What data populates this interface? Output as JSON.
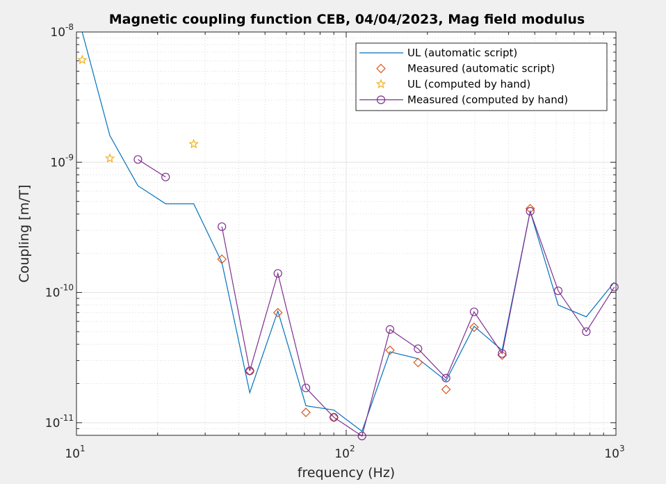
{
  "chart_data": {
    "type": "scatter",
    "title": "Magnetic coupling function CEB, 04/04/2023, Mag field modulus",
    "xlabel": "frequency (Hz)",
    "ylabel": "Coupling [m/T]",
    "xscale": "log",
    "yscale": "log",
    "xlim": [
      10,
      1000
    ],
    "ylim": [
      8e-12,
      1e-08
    ],
    "grid": true,
    "minor_grid": true,
    "legend_position": "top-right",
    "x_ticks": [
      {
        "value": 10,
        "base": "10",
        "exp": "1"
      },
      {
        "value": 100,
        "base": "10",
        "exp": "2"
      },
      {
        "value": 1000,
        "base": "10",
        "exp": "3"
      }
    ],
    "y_ticks": [
      {
        "value": 1e-08,
        "base": "10",
        "exp": "-8"
      },
      {
        "value": 1e-09,
        "base": "10",
        "exp": "-9"
      },
      {
        "value": 1e-10,
        "base": "10",
        "exp": "-10"
      },
      {
        "value": 1e-11,
        "base": "10",
        "exp": "-11"
      }
    ],
    "series": [
      {
        "name": "UL (automatic script)",
        "style": "line",
        "color": "#0072BD",
        "x": [
          10.5,
          13.3,
          16.9,
          21.4,
          27.2,
          34.6,
          43.9,
          55.8,
          70.9,
          90.0,
          114.4,
          145.3,
          184.6,
          234.5,
          297.9,
          378.5,
          480.9,
          610.9,
          776.2,
          986.3
        ],
        "y": [
          1e-08,
          1.6e-09,
          6.6e-10,
          4.8e-10,
          4.8e-10,
          1.7e-10,
          1.7e-11,
          7.2e-11,
          1.35e-11,
          1.25e-11,
          8.6e-12,
          3.5e-11,
          3.1e-11,
          2.1e-11,
          5.5e-11,
          3.6e-11,
          4.2e-10,
          8e-11,
          6.5e-11,
          1.2e-10
        ]
      },
      {
        "name": "Measured (automatic script)",
        "style": "diamond",
        "color": "#D95319",
        "x": [
          34.6,
          43.9,
          55.8,
          70.9,
          90.0,
          145.3,
          184.6,
          234.5,
          297.9,
          378.5,
          480.9
        ],
        "y": [
          1.8e-10,
          2.5e-11,
          7e-11,
          1.2e-11,
          1.1e-11,
          3.6e-11,
          2.9e-11,
          1.8e-11,
          5.4e-11,
          3.3e-11,
          4.4e-10
        ]
      },
      {
        "name": "UL (computed by hand)",
        "style": "star",
        "color": "#EDB120",
        "x": [
          10.5,
          13.3,
          27.2
        ],
        "y": [
          6.1e-09,
          1.07e-09,
          1.38e-09
        ]
      },
      {
        "name": "Measured (computed by hand)",
        "style": "line-circle",
        "color": "#7E2F8E",
        "x": [
          16.9,
          21.4,
          null,
          34.6,
          43.9,
          55.8,
          70.9,
          90.0,
          114.4,
          145.3,
          184.6,
          234.5,
          297.9,
          378.5,
          480.9,
          610.9,
          776.2,
          986.3
        ],
        "y": [
          1.05e-09,
          7.7e-10,
          null,
          3.2e-10,
          2.5e-11,
          1.4e-10,
          1.85e-11,
          1.1e-11,
          7.9e-12,
          5.2e-11,
          3.7e-11,
          2.2e-11,
          7.1e-11,
          3.4e-11,
          4.2e-10,
          1.03e-10,
          5e-11,
          1.1e-10
        ]
      }
    ]
  }
}
